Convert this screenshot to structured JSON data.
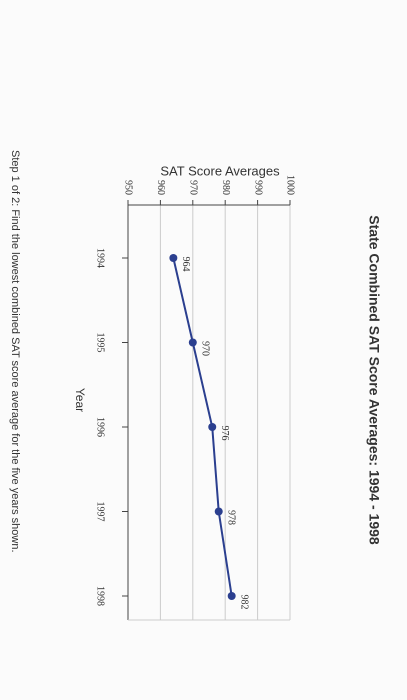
{
  "chart_data": {
    "type": "line",
    "title": "State Combined SAT Score Averages: 1994 - 1998",
    "y_label": "SAT Score Averages",
    "x_label": "Year",
    "categories": [
      "1994",
      "1995",
      "1996",
      "1997",
      "1998"
    ],
    "series": [
      {
        "name": "SAT Score Averages",
        "color": "#2b3f8f",
        "values": [
          964,
          970,
          976,
          978,
          982
        ]
      }
    ],
    "ylim": [
      950,
      1000
    ],
    "yticks": [
      950,
      960,
      970,
      980,
      990,
      1000
    ],
    "grid": true
  },
  "step_text": "Step 1 of 2: Find the lowest combined SAT score average for the five years shown."
}
